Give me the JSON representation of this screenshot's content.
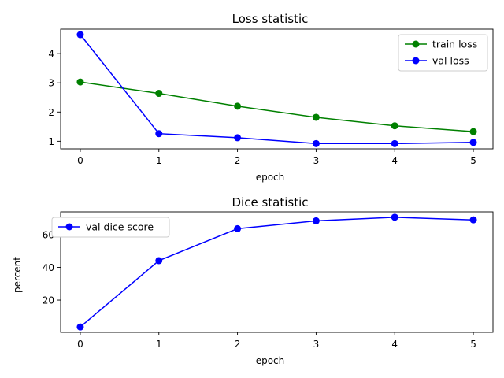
{
  "chart_data": [
    {
      "type": "line",
      "title": "Loss statistic",
      "xlabel": "epoch",
      "ylabel": "",
      "x": [
        0,
        1,
        2,
        3,
        4,
        5
      ],
      "xticks": [
        "0",
        "1",
        "2",
        "3",
        "4",
        "5"
      ],
      "yticks": [
        "1",
        "2",
        "3",
        "4"
      ],
      "xlim": [
        -0.25,
        5.25
      ],
      "ylim": [
        0.74,
        4.84
      ],
      "grid": false,
      "legend": "top-right",
      "series": [
        {
          "name": "train loss",
          "color": "#008000",
          "marker": "circle",
          "values": [
            3.03,
            2.64,
            2.2,
            1.82,
            1.53,
            1.33
          ]
        },
        {
          "name": "val loss",
          "color": "#0000ff",
          "marker": "circle",
          "values": [
            4.65,
            1.26,
            1.12,
            0.92,
            0.92,
            0.96
          ]
        }
      ]
    },
    {
      "type": "line",
      "title": "Dice statistic",
      "xlabel": "epoch",
      "ylabel": "percent",
      "x": [
        0,
        1,
        2,
        3,
        4,
        5
      ],
      "xticks": [
        "0",
        "1",
        "2",
        "3",
        "4",
        "5"
      ],
      "yticks": [
        "20",
        "40",
        "60"
      ],
      "xlim": [
        -0.25,
        5.25
      ],
      "ylim": [
        0.3,
        73.9
      ],
      "grid": false,
      "legend": "top-left",
      "series": [
        {
          "name": "val dice score",
          "color": "#0000ff",
          "marker": "circle",
          "values": [
            3.6,
            44.1,
            63.6,
            68.4,
            70.6,
            69.0
          ]
        }
      ]
    }
  ]
}
